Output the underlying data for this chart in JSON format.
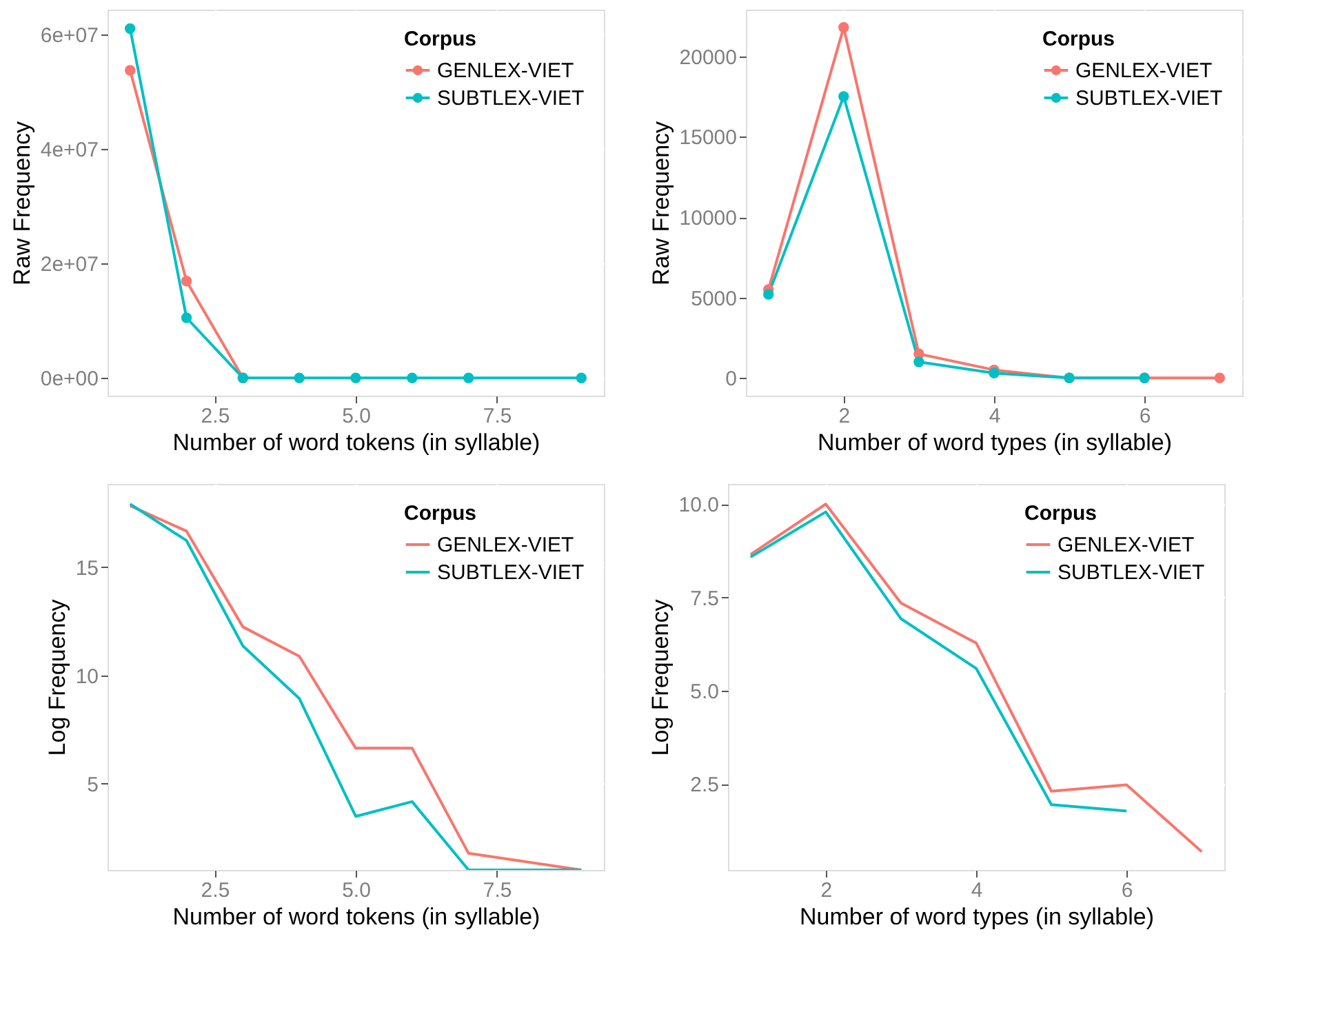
{
  "chart_data": [
    {
      "type": "line",
      "xlabel": "Number of word tokens (in syllable)",
      "ylabel": "Raw Frequency",
      "legend_title": "Corpus",
      "legend": "top right",
      "grid": true,
      "marker": "circle",
      "xlim": [
        0.6,
        9.4
      ],
      "xticks": [
        {
          "value": 2.5,
          "label": "2.5"
        },
        {
          "value": 5,
          "label": "5.0"
        },
        {
          "value": 7.5,
          "label": "7.5"
        }
      ],
      "ylim": [
        -3100000,
        64300000
      ],
      "yticks": [
        {
          "value": 0,
          "label": "0e+00"
        },
        {
          "value": 20000000,
          "label": "2e+07"
        },
        {
          "value": 40000000,
          "label": "4e+07"
        },
        {
          "value": 60000000,
          "label": "6e+07"
        }
      ],
      "series": [
        {
          "name": "GENLEX-VIET",
          "color": "#f8766d",
          "x": [
            1,
            2,
            3
          ],
          "values": [
            53700000,
            16900000,
            0
          ]
        },
        {
          "name": "SUBTLEX-VIET",
          "color": "#00bfc4",
          "x": [
            1,
            2,
            3,
            4,
            5,
            6,
            7,
            9
          ],
          "values": [
            61000000,
            10500000,
            0,
            0,
            0,
            0,
            0,
            0
          ]
        }
      ]
    },
    {
      "type": "line",
      "xlabel": "Number of word types (in syllable)",
      "ylabel": "Raw Frequency",
      "legend_title": "Corpus",
      "legend": "top right",
      "grid": true,
      "marker": "circle",
      "xlim": [
        0.7,
        7.3
      ],
      "xticks": [
        2,
        4,
        6
      ],
      "ylim": [
        -1100,
        22900
      ],
      "yticks": [
        0,
        5000,
        10000,
        15000,
        20000
      ],
      "series": [
        {
          "name": "GENLEX-VIET",
          "color": "#f8766d",
          "x": [
            1,
            2,
            3,
            4,
            5,
            6,
            7
          ],
          "values": [
            5500,
            21800,
            1500,
            500,
            0,
            0,
            0
          ]
        },
        {
          "name": "SUBTLEX-VIET",
          "color": "#00bfc4",
          "x": [
            1,
            2,
            3,
            4,
            5,
            6
          ],
          "values": [
            5200,
            17500,
            1000,
            300,
            0,
            0
          ]
        }
      ]
    },
    {
      "type": "line",
      "xlabel": "Number of word tokens (in syllable)",
      "ylabel": "Log Frequency",
      "legend_title": "Corpus",
      "legend": "top right",
      "grid": true,
      "marker": "none",
      "xlim": [
        0.6,
        9.4
      ],
      "xticks": [
        {
          "value": 2.5,
          "label": "2.5"
        },
        {
          "value": 5,
          "label": "5.0"
        },
        {
          "value": 7.5,
          "label": "7.5"
        }
      ],
      "ylim": [
        1.0,
        18.85
      ],
      "yticks": [
        5,
        10,
        15
      ],
      "series": [
        {
          "name": "GENLEX-VIET",
          "color": "#f8766d",
          "x": [
            1,
            2,
            3,
            4,
            5,
            6,
            7,
            9
          ],
          "values": [
            17.84,
            16.67,
            12.24,
            10.88,
            6.63,
            6.63,
            1.77,
            1.0
          ]
        },
        {
          "name": "SUBTLEX-VIET",
          "color": "#00bfc4",
          "x": [
            1,
            2,
            3,
            4,
            5,
            6,
            7,
            9
          ],
          "values": [
            17.92,
            16.23,
            11.36,
            8.93,
            3.48,
            4.16,
            1.0,
            1.0
          ]
        }
      ]
    },
    {
      "type": "line",
      "xlabel": "Number of word types (in syllable)",
      "ylabel": "Log Frequency",
      "legend_title": "Corpus",
      "legend": "top right",
      "grid": true,
      "marker": "none",
      "xlim": [
        0.7,
        7.3
      ],
      "xticks": [
        2,
        4,
        6
      ],
      "ylim": [
        0.2,
        10.54
      ],
      "yticks": [
        {
          "value": 2.5,
          "label": "2.5"
        },
        {
          "value": 5,
          "label": "5.0"
        },
        {
          "value": 7.5,
          "label": "7.5"
        },
        {
          "value": 10,
          "label": "10.0"
        }
      ],
      "series": [
        {
          "name": "GENLEX-VIET",
          "color": "#f8766d",
          "x": [
            1,
            2,
            3,
            4,
            5,
            6,
            7
          ],
          "values": [
            8.65,
            10.0,
            7.35,
            6.28,
            2.31,
            2.48,
            0.69
          ]
        },
        {
          "name": "SUBTLEX-VIET",
          "color": "#00bfc4",
          "x": [
            1,
            2,
            3,
            4,
            5,
            6
          ],
          "values": [
            8.58,
            9.79,
            6.93,
            5.6,
            1.95,
            1.78
          ]
        }
      ]
    }
  ]
}
